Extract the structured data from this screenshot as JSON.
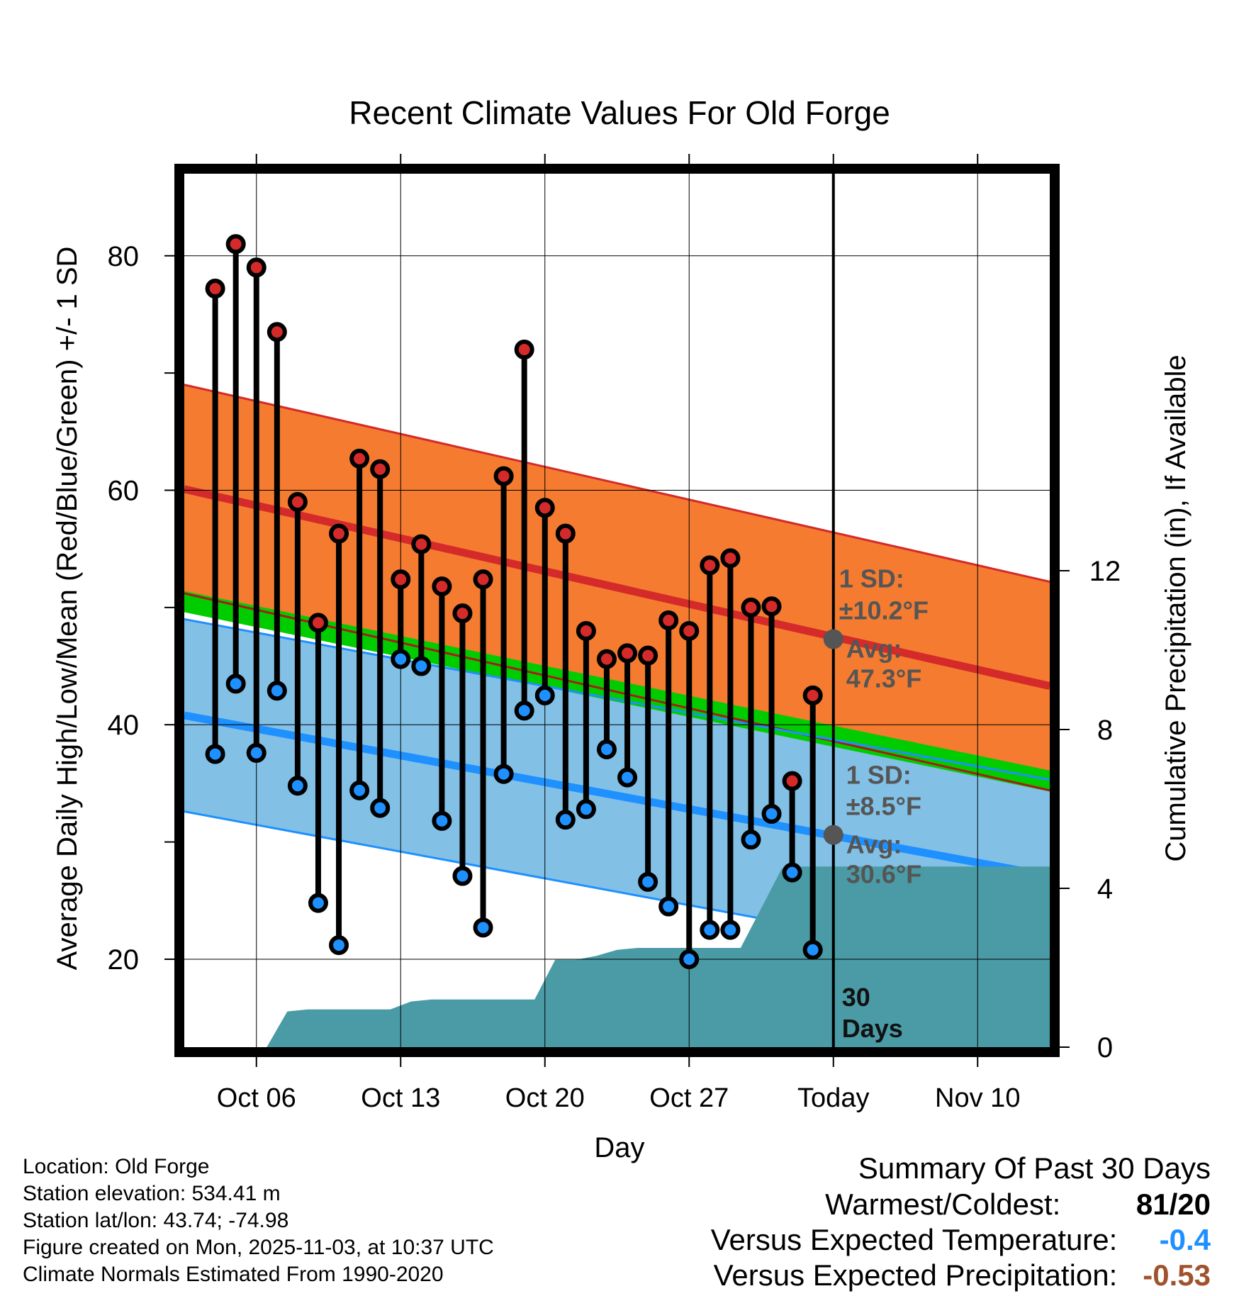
{
  "chart_data": {
    "type": "range-dot",
    "title": "Recent Climate Values For Old Forge",
    "xlabel": "Day",
    "ylabel": "Average Daily High/Low/Mean (Red/Blue/Green) +/- 1 SD",
    "y2label": "Cumulative Precipitation (in), If Available",
    "xlim": [
      -1.5,
      40.5
    ],
    "ylim": [
      12.5,
      87
    ],
    "y2lim": [
      0,
      22
    ],
    "xticks": [
      {
        "x": 2,
        "label": "Oct 06"
      },
      {
        "x": 9,
        "label": "Oct 13"
      },
      {
        "x": 16,
        "label": "Oct 20"
      },
      {
        "x": 23,
        "label": "Oct 27"
      },
      {
        "x": 30,
        "label": "Today"
      },
      {
        "x": 37,
        "label": "Nov 10"
      }
    ],
    "yticks": [
      20,
      40,
      60,
      80
    ],
    "y2ticks": [
      0,
      4,
      8,
      12
    ],
    "today_x": 30,
    "highs": [
      77.2,
      81,
      79,
      73.5,
      59,
      48.7,
      56.3,
      62.7,
      61.8,
      52.4,
      55.4,
      51.8,
      49.5,
      52.4,
      61.2,
      72,
      58.5,
      56.3,
      48,
      45.6,
      46.1,
      45.9,
      48.9,
      48,
      53.6,
      54.2,
      50,
      50.1,
      35.2,
      42.5
    ],
    "lows": [
      37.5,
      43.5,
      37.6,
      42.9,
      34.8,
      24.8,
      21.2,
      34.4,
      32.9,
      45.6,
      45,
      31.8,
      27.1,
      22.7,
      35.8,
      41.2,
      42.5,
      31.9,
      32.8,
      37.9,
      35.5,
      26.6,
      24.5,
      20,
      22.5,
      22.5,
      30.2,
      32.4,
      27.4,
      20.8
    ],
    "normal_high": {
      "start": 60.1,
      "end": 43.3
    },
    "normal_low": {
      "start": 40.8,
      "end": 27.1
    },
    "normal_mean": {
      "start": 50.5,
      "end": 35.2
    },
    "high_sd": 8.9,
    "low_sd": 8.2,
    "precip_cumulative": [
      0,
      0,
      0,
      0.9,
      0.95,
      0.95,
      0.95,
      0.95,
      0.95,
      1.15,
      1.2,
      1.2,
      1.2,
      1.2,
      1.2,
      1.2,
      2.2,
      2.2,
      2.3,
      2.45,
      2.5,
      2.5,
      2.5,
      2.5,
      2.5,
      2.5,
      3.5,
      4.5,
      4.55,
      4.55,
      4.55
    ],
    "precip_future": 4.55,
    "annotations": {
      "high_sd_label": "1 SD:",
      "high_sd_value": "±10.2°F",
      "high_avg_label": "Avg:",
      "high_avg_value": "47.3°F",
      "high_avg": 47.3,
      "low_sd_label": "1 SD:",
      "low_sd_value": "±8.5°F",
      "low_avg_label": "Avg:",
      "low_avg_value": "30.6°F",
      "low_avg": 30.6,
      "days_label_1": "30",
      "days_label_2": "Days"
    },
    "colors": {
      "high_band": "#f47b30",
      "high_line": "#d42a2a",
      "low_band": "#82c0e6",
      "low_line": "#1e90ff",
      "mean_band": "#00cc00",
      "mean_dark": "#aa1a1a",
      "precip": "#4a9ba6",
      "annot": "#555555",
      "high_dot": "#d42a2a",
      "low_dot": "#1e90ff"
    }
  },
  "info": {
    "location": "Location: Old Forge",
    "elevation": "Station elevation: 534.41 m",
    "latlon": "Station lat/lon: 43.74; -74.98",
    "created": "Figure created on Mon, 2025-11-03, at 10:37 UTC",
    "normals": "Climate Normals Estimated From 1990-2020"
  },
  "summary": {
    "title": "Summary Of Past 30 Days",
    "warm_label": "Warmest/Coldest:",
    "warm_value": "81",
    "sep": "/",
    "cold_value": "20",
    "temp_label": "Versus Expected Temperature:",
    "temp_value": "-0.4",
    "temp_color": "#1e90ff",
    "precip_label": "Versus Expected Precipitation:",
    "precip_value": "-0.53",
    "precip_color": "#a0522d"
  }
}
